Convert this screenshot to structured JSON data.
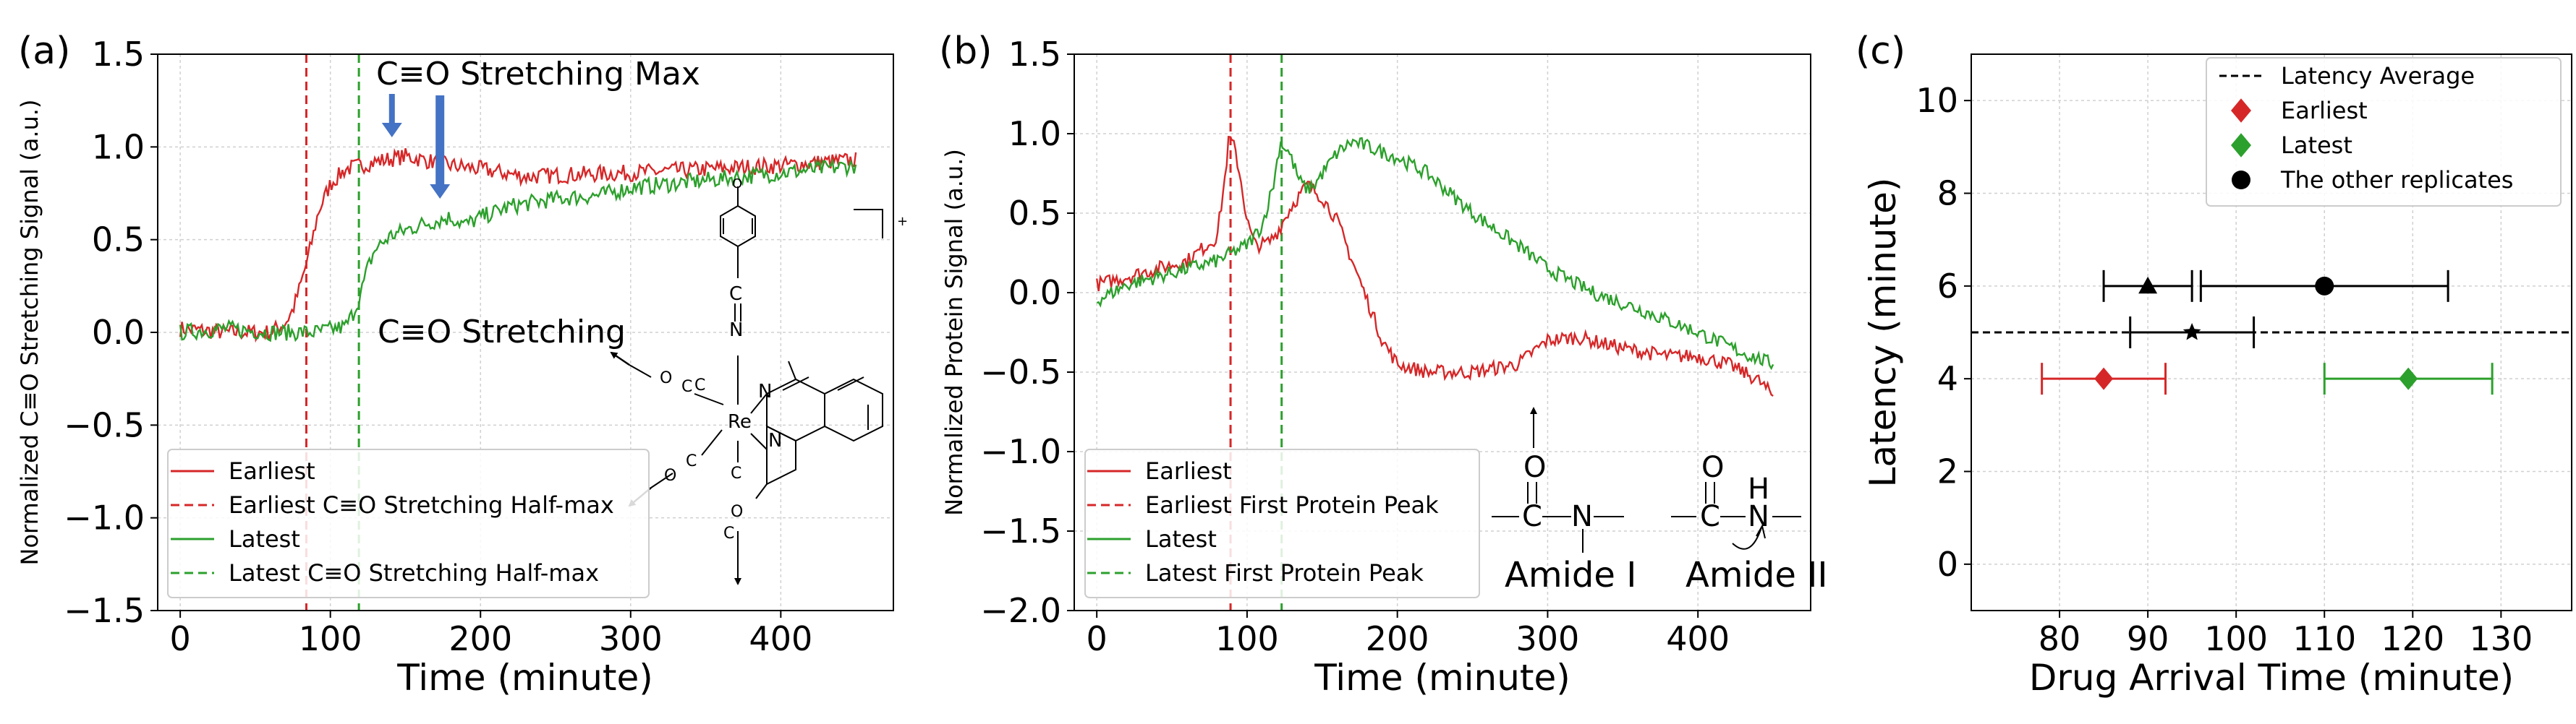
{
  "colors": {
    "red": "#d62728",
    "green": "#2ca02c",
    "blue": "#4472c4",
    "black": "#000000",
    "grid": "#d0d0d0"
  },
  "chart_data": [
    {
      "panel": "(a)",
      "type": "line",
      "xlabel": "Time (minute)",
      "ylabel": "Normalized C≡O Stretching Signal (a.u.)",
      "xlim": [
        -15,
        475
      ],
      "ylim": [
        -1.5,
        1.5
      ],
      "xticks": [
        0,
        100,
        200,
        300,
        400
      ],
      "xtick_labels": [
        "0",
        "100",
        "200",
        "300",
        "400"
      ],
      "yticks": [
        -1.5,
        -1.0,
        -0.5,
        0.0,
        0.5,
        1.0,
        1.5
      ],
      "ytick_labels": [
        "−1.5",
        "−1.0",
        "−0.5",
        "0.0",
        "0.5",
        "1.0",
        "1.5"
      ],
      "grid": true,
      "legend_position": "lower-left",
      "series": [
        {
          "name": "Earliest",
          "color": "red",
          "x": [
            0,
            30,
            60,
            70,
            75,
            80,
            85,
            88,
            92,
            100,
            110,
            130,
            150,
            180,
            200,
            230,
            260,
            300,
            350,
            400,
            450
          ],
          "y": [
            0.02,
            0.0,
            0.0,
            0.05,
            0.12,
            0.25,
            0.4,
            0.5,
            0.65,
            0.8,
            0.88,
            0.92,
            0.95,
            0.9,
            0.88,
            0.84,
            0.85,
            0.86,
            0.88,
            0.9,
            0.93
          ]
        },
        {
          "name": "Latest",
          "color": "green",
          "x": [
            0,
            30,
            60,
            90,
            110,
            115,
            120,
            125,
            130,
            140,
            150,
            160,
            170,
            180,
            190,
            200,
            220,
            250,
            280,
            300,
            350,
            400,
            450
          ],
          "y": [
            0.0,
            0.02,
            0.0,
            0.0,
            0.03,
            0.1,
            0.2,
            0.35,
            0.45,
            0.52,
            0.55,
            0.58,
            0.6,
            0.62,
            0.58,
            0.62,
            0.68,
            0.72,
            0.74,
            0.78,
            0.82,
            0.86,
            0.9
          ]
        }
      ],
      "vlines": [
        {
          "name": "Earliest C≡O Stretching Half-max",
          "x": 84,
          "color": "red"
        },
        {
          "name": "Latest C≡O Stretching Half-max",
          "x": 119,
          "color": "green"
        }
      ],
      "legend": [
        "Earliest",
        "Earliest C≡O Stretching Half-max",
        "Latest",
        "Latest C≡O Stretching Half-max"
      ],
      "annotations": [
        "C≡O Stretching Max",
        "C≡O Stretching",
        "+"
      ],
      "arrows_x": [
        141,
        173
      ],
      "molecule_labels": [
        "O",
        "C",
        "N",
        "N",
        "N",
        "Re",
        "C",
        "C",
        "C",
        "O",
        "O",
        "O",
        "C",
        "C"
      ]
    },
    {
      "panel": "(b)",
      "type": "line",
      "xlabel": "Time (minute)",
      "ylabel": "Normalized Protein Signal (a.u.)",
      "xlim": [
        -15,
        475
      ],
      "ylim": [
        -2.0,
        1.5
      ],
      "xticks": [
        0,
        100,
        200,
        300,
        400
      ],
      "xtick_labels": [
        "0",
        "100",
        "200",
        "300",
        "400"
      ],
      "yticks": [
        -2.0,
        -1.5,
        -1.0,
        -0.5,
        0.0,
        0.5,
        1.0,
        1.5
      ],
      "ytick_labels": [
        "−2.0",
        "−1.5",
        "−1.0",
        "−0.5",
        "0.0",
        "0.5",
        "1.0",
        "1.5"
      ],
      "grid": true,
      "legend_position": "lower-left",
      "series": [
        {
          "name": "Earliest",
          "color": "red",
          "x": [
            0,
            20,
            40,
            60,
            80,
            85,
            88,
            92,
            96,
            100,
            105,
            110,
            115,
            120,
            130,
            140,
            150,
            160,
            170,
            180,
            190,
            200,
            220,
            250,
            280,
            300,
            320,
            350,
            380,
            400,
            420,
            440,
            450
          ],
          "y": [
            0.05,
            0.1,
            0.15,
            0.2,
            0.35,
            0.7,
            0.98,
            0.9,
            0.7,
            0.45,
            0.3,
            0.3,
            0.32,
            0.38,
            0.55,
            0.68,
            0.6,
            0.45,
            0.2,
            -0.05,
            -0.3,
            -0.45,
            -0.5,
            -0.5,
            -0.45,
            -0.3,
            -0.28,
            -0.35,
            -0.4,
            -0.4,
            -0.45,
            -0.55,
            -0.65
          ]
        },
        {
          "name": "Latest",
          "color": "green",
          "x": [
            0,
            20,
            40,
            60,
            80,
            100,
            110,
            118,
            122,
            128,
            135,
            140,
            145,
            150,
            160,
            170,
            180,
            200,
            220,
            250,
            280,
            300,
            330,
            360,
            400,
            430,
            450
          ],
          "y": [
            -0.05,
            0.05,
            0.1,
            0.15,
            0.2,
            0.3,
            0.42,
            0.7,
            0.95,
            0.88,
            0.7,
            0.65,
            0.68,
            0.75,
            0.88,
            0.95,
            0.92,
            0.85,
            0.75,
            0.5,
            0.3,
            0.15,
            0.0,
            -0.1,
            -0.25,
            -0.38,
            -0.45
          ]
        }
      ],
      "vlines": [
        {
          "name": "Earliest First Protein Peak",
          "x": 89,
          "color": "red"
        },
        {
          "name": "Latest First Protein Peak",
          "x": 123,
          "color": "green"
        }
      ],
      "legend": [
        "Earliest",
        "Earliest First Protein Peak",
        "Latest",
        "Latest First Protein Peak"
      ],
      "annotations": [
        "Amide I",
        "Amide II"
      ],
      "amide_labels": [
        "O",
        "C",
        "N",
        "O",
        "C",
        "N",
        "H"
      ]
    },
    {
      "panel": "(c)",
      "type": "scatter",
      "xlabel": "Drug Arrival Time (minute)",
      "ylabel": "Latency (minute)",
      "xlim": [
        70,
        138
      ],
      "ylim": [
        -1,
        11
      ],
      "xticks": [
        80,
        90,
        100,
        110,
        120,
        130
      ],
      "xtick_labels": [
        "80",
        "90",
        "100",
        "110",
        "120",
        "130"
      ],
      "yticks": [
        0,
        2,
        4,
        6,
        8,
        10
      ],
      "ytick_labels": [
        "0",
        "2",
        "4",
        "6",
        "8",
        "10"
      ],
      "grid": true,
      "legend_position": "top-right",
      "hline": {
        "name": "Latency Average",
        "y": 5.0,
        "style": "dashed"
      },
      "points": [
        {
          "name": "Earliest",
          "x": 85,
          "y": 4,
          "xerr": 7,
          "marker": "diamond",
          "color": "red"
        },
        {
          "name": "Latest",
          "x": 119.5,
          "y": 4,
          "xerr": 9.5,
          "marker": "diamond",
          "color": "green"
        },
        {
          "name": "The other replicates",
          "x": 110,
          "y": 6,
          "xerr": 14,
          "marker": "circle",
          "color": "black"
        },
        {
          "name": "The other replicates",
          "x": 90,
          "y": 6,
          "xerr": 5,
          "marker": "triangle",
          "color": "black"
        },
        {
          "name": "The other replicates",
          "x": 95,
          "y": 5,
          "xerr": 7,
          "marker": "star",
          "color": "black"
        }
      ],
      "legend": [
        "Latency Average",
        "Earliest",
        "Latest",
        "The other replicates"
      ]
    }
  ]
}
